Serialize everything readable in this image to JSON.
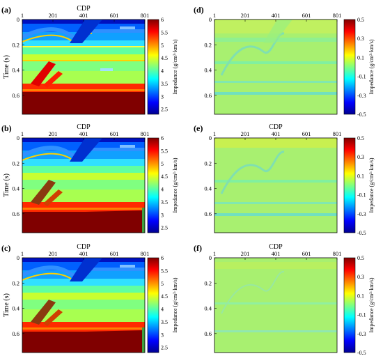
{
  "figure": {
    "panels": [
      {
        "id": "a",
        "label": "(a)",
        "kind": "model",
        "section": "impedance"
      },
      {
        "id": "b",
        "label": "(b)",
        "kind": "model",
        "section": "impedance"
      },
      {
        "id": "c",
        "label": "(c)",
        "kind": "model",
        "section": "impedance"
      },
      {
        "id": "d",
        "label": "(d)",
        "kind": "residual",
        "section": "residual"
      },
      {
        "id": "e",
        "label": "(e)",
        "kind": "residual",
        "section": "residual"
      },
      {
        "id": "f",
        "label": "(f)",
        "kind": "residual",
        "section": "residual"
      }
    ],
    "xlabel": "CDP",
    "ylabel": "Time (s)",
    "x_ticks": [
      "1",
      "201",
      "401",
      "601",
      "801"
    ],
    "y_ticks": [
      "0",
      "0.2",
      "0.4",
      "0.6"
    ],
    "colorbar_model": {
      "label": "Impedance (g/cm³·km/s)",
      "ticks": [
        "6",
        "5.5",
        "5",
        "4.5",
        "4",
        "3.5",
        "3",
        "2.5"
      ]
    },
    "colorbar_residual": {
      "label": "Impedance (g/cm³·km/s)",
      "ticks": [
        "0.5",
        "0.3",
        "0.1",
        "-0.1",
        "-0.3",
        "-0.5"
      ]
    },
    "colormap": [
      "#00008f",
      "#0000ff",
      "#0080ff",
      "#00ffff",
      "#80ff80",
      "#ffff00",
      "#ff8000",
      "#ff0000",
      "#800000"
    ]
  },
  "chart_data": [
    {
      "type": "heatmap",
      "panel": "(a)",
      "xlabel": "CDP",
      "ylabel": "Time (s)",
      "xlim": [
        1,
        801
      ],
      "ylim": [
        0,
        0.75
      ],
      "clim": [
        2.3,
        6
      ]
    },
    {
      "type": "heatmap",
      "panel": "(b)",
      "xlabel": "CDP",
      "ylabel": "Time (s)",
      "xlim": [
        1,
        801
      ],
      "ylim": [
        0,
        0.75
      ],
      "clim": [
        2.3,
        6
      ]
    },
    {
      "type": "heatmap",
      "panel": "(c)",
      "xlabel": "CDP",
      "ylabel": "Time (s)",
      "xlim": [
        1,
        801
      ],
      "ylim": [
        0,
        0.75
      ],
      "clim": [
        2.3,
        6
      ]
    },
    {
      "type": "heatmap",
      "panel": "(d)",
      "xlabel": "",
      "ylabel": "",
      "xlim": [
        1,
        801
      ],
      "ylim": [
        0,
        0.75
      ],
      "clim": [
        -0.5,
        0.5
      ]
    },
    {
      "type": "heatmap",
      "panel": "(e)",
      "xlabel": "CDP",
      "ylabel": "",
      "xlim": [
        1,
        801
      ],
      "ylim": [
        0,
        0.75
      ],
      "clim": [
        -0.5,
        0.5
      ]
    },
    {
      "type": "heatmap",
      "panel": "(f)",
      "xlabel": "CDP",
      "ylabel": "",
      "xlim": [
        1,
        801
      ],
      "ylim": [
        0,
        0.75
      ],
      "clim": [
        -0.5,
        0.5
      ]
    }
  ]
}
